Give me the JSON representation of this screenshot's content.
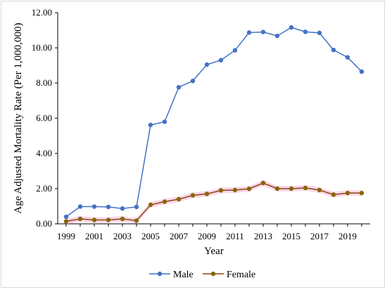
{
  "chart_data": {
    "type": "line",
    "title": "",
    "xlabel": "Year",
    "ylabel": "Age Adjusted Mortality Rate (Per 1,000,000)",
    "x": [
      1999,
      2000,
      2001,
      2002,
      2003,
      2004,
      2005,
      2006,
      2007,
      2008,
      2009,
      2010,
      2011,
      2012,
      2013,
      2014,
      2015,
      2016,
      2017,
      2018,
      2019,
      2020
    ],
    "x_tick_labels": [
      "1999",
      "2001",
      "2003",
      "2005",
      "2007",
      "2009",
      "2011",
      "2013",
      "2015",
      "2017",
      "2019"
    ],
    "y_tick_labels": [
      "0.00",
      "2.00",
      "4.00",
      "6.00",
      "8.00",
      "10.00",
      "12.00"
    ],
    "ylim": [
      0,
      12
    ],
    "grid": false,
    "legend_position": "bottom",
    "series": [
      {
        "name": "Male",
        "color": "#4472C4",
        "values": [
          0.4,
          0.98,
          0.98,
          0.96,
          0.87,
          0.96,
          5.62,
          5.8,
          7.76,
          8.12,
          9.05,
          9.3,
          9.86,
          10.87,
          10.9,
          10.68,
          11.16,
          10.91,
          10.85,
          9.88,
          9.46,
          8.65
        ]
      },
      {
        "name": "Female",
        "color": "#8B4513",
        "marker_color": "#8B6508",
        "band_color": "#F4B6D6",
        "values": [
          0.14,
          0.28,
          0.22,
          0.22,
          0.28,
          0.18,
          1.08,
          1.26,
          1.4,
          1.62,
          1.7,
          1.9,
          1.92,
          1.99,
          2.32,
          2.0,
          2.0,
          2.04,
          1.92,
          1.66,
          1.75,
          1.75
        ]
      }
    ]
  }
}
